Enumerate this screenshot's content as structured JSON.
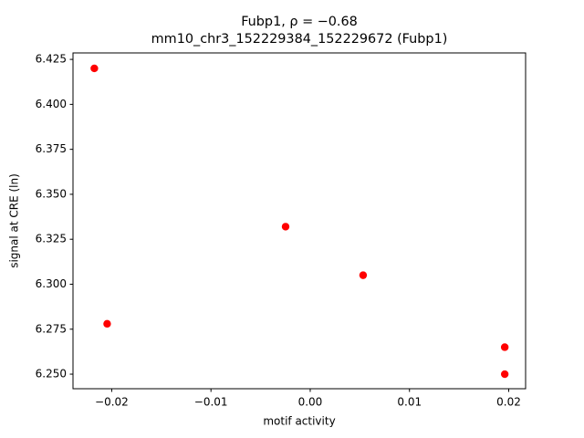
{
  "chart_data": {
    "type": "scatter",
    "title": "Fubp1, ρ = −0.68",
    "subtitle": "mm10_chr3_152229384_152229672 (Fubp1)",
    "x_label": "motif activity",
    "y_label": "signal at CRE (ln)",
    "series": [
      {
        "color": "#ff0000",
        "x": [
          -0.02175,
          -0.02046,
          -0.00248,
          0.00533,
          0.0196,
          0.0196
        ],
        "values": [
          6.42,
          6.278,
          6.332,
          6.305,
          6.265,
          6.25
        ]
      }
    ],
    "xlim": [
      -0.0239,
      0.0217
    ],
    "ylim": [
      6.2419,
      6.4286
    ],
    "xticks": [
      {
        "value": -0.02,
        "label": "−0.02"
      },
      {
        "value": -0.01,
        "label": "−0.01"
      },
      {
        "value": 0,
        "label": "0.00"
      },
      {
        "value": 0.01,
        "label": "0.01"
      },
      {
        "value": 0.02,
        "label": "0.02"
      }
    ],
    "yticks": [
      {
        "value": 6.25,
        "label": "6.250"
      },
      6.275,
      {
        "value": 6.3,
        "label": "6.300"
      },
      6.325,
      {
        "value": 6.35,
        "label": "6.350"
      },
      6.375,
      {
        "value": 6.4,
        "label": "6.400"
      },
      6.425
    ],
    "grid": false
  }
}
